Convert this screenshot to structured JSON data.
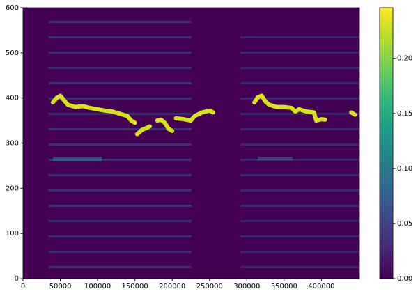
{
  "chart_data": {
    "type": "line",
    "x": [
      40000,
      45000,
      50000,
      55000,
      60000,
      70000,
      80000,
      90000,
      100000,
      110000,
      120000,
      130000,
      140000,
      145000,
      150000,
      null,
      153000,
      160000,
      165000,
      170000,
      null,
      180000,
      185000,
      190000,
      195000,
      200000,
      null,
      205000,
      215000,
      225000,
      230000,
      240000,
      250000,
      255000,
      null,
      310000,
      315000,
      320000,
      325000,
      330000,
      340000,
      350000,
      360000,
      365000,
      370000,
      380000,
      390000,
      393000,
      400000,
      405000,
      null,
      440000,
      445000
    ],
    "series": [
      {
        "color": "#d8e219",
        "values": [
          390,
          400,
          405,
          395,
          385,
          380,
          382,
          378,
          375,
          372,
          370,
          365,
          360,
          350,
          345,
          null,
          320,
          330,
          333,
          337,
          null,
          350,
          352,
          345,
          332,
          327,
          null,
          355,
          353,
          350,
          360,
          368,
          372,
          368,
          null,
          390,
          402,
          405,
          392,
          385,
          380,
          380,
          378,
          370,
          375,
          370,
          368,
          350,
          353,
          352,
          null,
          368,
          363
        ]
      }
    ],
    "xlim": [
      0,
      451000
    ],
    "xticks": [
      0,
      50000,
      100000,
      150000,
      200000,
      250000,
      300000,
      350000,
      400000
    ],
    "ylim": [
      0,
      600
    ],
    "yticks": [
      0,
      100,
      200,
      300,
      400,
      500,
      600
    ],
    "colormap": "viridis",
    "clim": [
      0,
      0.246
    ],
    "cticks": [
      {
        "value": 0,
        "label": "0.00"
      },
      {
        "value": 0.05,
        "label": "0.05"
      },
      {
        "value": 0.1,
        "label": "0.10"
      },
      {
        "value": 0.15,
        "label": "0.15"
      },
      {
        "value": 0.2,
        "label": "0.20"
      }
    ]
  }
}
